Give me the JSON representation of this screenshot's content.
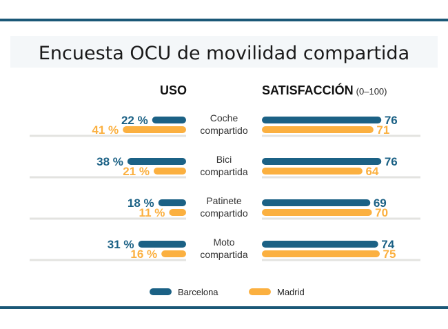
{
  "colors": {
    "barcelona": "#1b6185",
    "madrid": "#fbb040",
    "rule": "#1b5877",
    "baseline": "#e3e3e0",
    "title_band": "#f4f7f9"
  },
  "chart_data": {
    "type": "bar",
    "title": "Encuesta OCU de movilidad compartida",
    "panels": [
      {
        "title": "USO",
        "subtitle": "",
        "unit": "%",
        "direction": "left"
      },
      {
        "title": "SATISFACCIÓN",
        "subtitle": "(0–100)",
        "unit": "",
        "direction": "right",
        "xlim": [
          0,
          100
        ]
      }
    ],
    "categories": [
      {
        "line1": "Coche",
        "line2": "compartido"
      },
      {
        "line1": "Bici",
        "line2": "compartida"
      },
      {
        "line1": "Patinete",
        "line2": "compartido"
      },
      {
        "line1": "Moto",
        "line2": "compartida"
      }
    ],
    "series": [
      {
        "name": "Barcelona",
        "uso": [
          22,
          38,
          18,
          31
        ],
        "satisfaccion": [
          76,
          76,
          69,
          74
        ]
      },
      {
        "name": "Madrid",
        "uso": [
          41,
          21,
          11,
          16
        ],
        "satisfaccion": [
          71,
          64,
          70,
          75
        ]
      }
    ],
    "uso_labels": [
      [
        "22 %",
        "38 %",
        "18 %",
        "31 %"
      ],
      [
        "41 %",
        "21 %",
        "11 %",
        "16 %"
      ]
    ],
    "legend": {
      "placement": "bottom"
    }
  }
}
